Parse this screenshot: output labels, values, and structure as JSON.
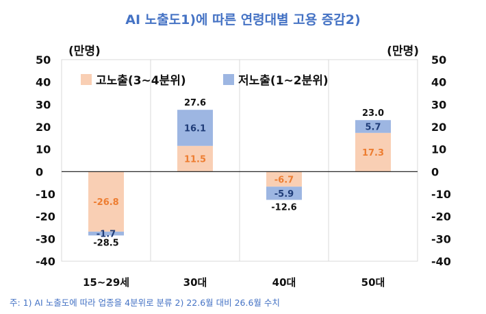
{
  "title": "AI 노출도1)에 따른 연령대별 고용 증감2)",
  "unit_left": "(만명)",
  "unit_right": "(만명)",
  "footnote": "주: 1) AI 노출도에 따라 업종을 4분위로 분류   2) 22.6월 대비 26.6월 수치",
  "chart_data": {
    "type": "bar",
    "stacked": true,
    "title": "AI 노출도1)에 따른 연령대별 고용 증감2)",
    "categories": [
      "15~29세",
      "30대",
      "40대",
      "50대"
    ],
    "series": [
      {
        "name": "고노출(3~4분위)",
        "values": [
          -26.8,
          11.5,
          -6.7,
          17.3
        ],
        "color": "#F9CFB4",
        "label_color": "#ED7D31"
      },
      {
        "name": "저노출(1~2분위)",
        "values": [
          -1.7,
          16.1,
          -5.9,
          5.7
        ],
        "color": "#9DB6E2",
        "label_color": "#1F3C78"
      }
    ],
    "totals": [
      -28.5,
      27.6,
      -12.6,
      23.0
    ],
    "total_labels": [
      "-28.5",
      "27.6",
      "-12.6",
      "23.0"
    ],
    "value_labels": [
      [
        "-26.8",
        "11.5",
        "-6.7",
        "17.3"
      ],
      [
        "-1.7",
        "16.1",
        "-5.9",
        "5.7"
      ]
    ],
    "ylim": [
      -40,
      50
    ],
    "yticks": [
      50,
      40,
      30,
      20,
      10,
      0,
      -10,
      -20,
      -30,
      -40
    ],
    "ytick_labels": [
      "50",
      "40",
      "30",
      "20",
      "10",
      "0",
      "-10",
      "-20",
      "-30",
      "-40"
    ],
    "grid": "vertical",
    "legend_position": "top-left"
  }
}
